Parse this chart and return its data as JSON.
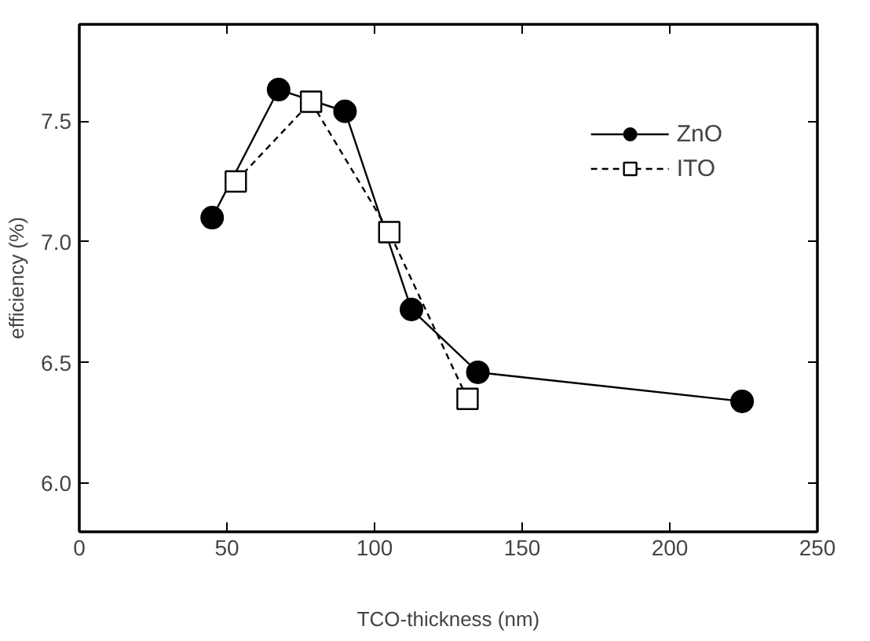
{
  "chart_data": {
    "type": "line",
    "xlabel": "TCO-thickness (nm)",
    "ylabel": "efficiency (%)",
    "xlim": [
      0,
      250
    ],
    "xticks": [
      0,
      50,
      100,
      150,
      200,
      250
    ],
    "ylim": [
      5.8,
      7.9
    ],
    "yticks": [
      {
        "value": 6.0,
        "label": "6.0"
      },
      {
        "value": 6.5,
        "label": "6.5"
      },
      {
        "value": 7.0,
        "label": "7.0"
      },
      {
        "value": 7.5,
        "label": "7.5"
      }
    ],
    "grid": false,
    "legend": "top right",
    "series": [
      {
        "name": "ZnO",
        "color": "#000000",
        "marker": "circle",
        "line_style": "solid",
        "x": [
          45,
          67.5,
          90,
          112.5,
          135,
          224.5
        ],
        "values": [
          7.1,
          7.63,
          7.54,
          6.72,
          6.46,
          6.34
        ]
      },
      {
        "name": "ITO",
        "color": "#000000",
        "marker": "square",
        "line_style": "dashed",
        "x": [
          53,
          78.5,
          105,
          131.5
        ],
        "values": [
          7.25,
          7.58,
          7.04,
          6.35
        ]
      }
    ]
  }
}
